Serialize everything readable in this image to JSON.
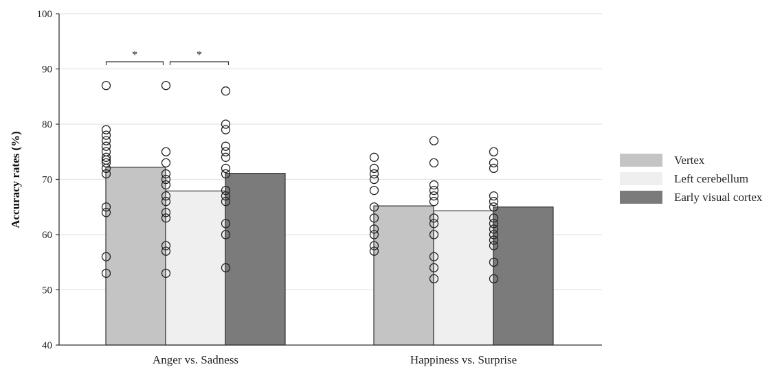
{
  "chart_data": {
    "type": "bar",
    "ylabel": "Accuracy rates (%)",
    "xlabel": "",
    "ylim": [
      40,
      100
    ],
    "yticks": [
      40,
      50,
      60,
      70,
      80,
      90,
      100
    ],
    "grid": true,
    "legend_position": "right",
    "categories": [
      "Anger vs. Sadness",
      "Happiness vs. Surprise"
    ],
    "series": [
      {
        "name": "Vertex",
        "color": "#c4c4c4",
        "values": [
          72.2,
          65.2
        ],
        "points": [
          [
            87,
            79,
            78,
            77,
            76,
            75,
            74,
            73.5,
            73,
            72,
            71,
            65,
            64,
            56,
            53
          ],
          [
            74,
            72,
            71,
            70,
            68,
            65,
            63,
            61,
            60,
            58,
            57
          ]
        ]
      },
      {
        "name": "Left cerebellum",
        "color": "#efefef",
        "values": [
          67.9,
          64.3
        ],
        "points": [
          [
            87,
            75,
            73,
            71,
            70,
            69,
            67,
            66,
            64,
            63,
            58,
            57,
            53
          ],
          [
            77,
            73,
            69,
            68,
            67,
            66,
            63,
            62,
            60,
            56,
            54,
            52
          ]
        ]
      },
      {
        "name": "Early visual cortex",
        "color": "#7b7b7b",
        "values": [
          71.1,
          65.0
        ],
        "points": [
          [
            86,
            80,
            79,
            76,
            75,
            74,
            72,
            71,
            68,
            67,
            66,
            62,
            60,
            54
          ],
          [
            75,
            73,
            72,
            67,
            66,
            65,
            63,
            62,
            61,
            60,
            59,
            58,
            55,
            52
          ]
        ]
      }
    ],
    "annotations": [
      {
        "label": "*",
        "category": "Anger vs. Sadness",
        "from": "Vertex",
        "to": "Left cerebellum",
        "y": 91.3
      },
      {
        "label": "*",
        "category": "Anger vs. Sadness",
        "from": "Left cerebellum",
        "to": "Early visual cortex",
        "y": 91.3
      }
    ]
  }
}
